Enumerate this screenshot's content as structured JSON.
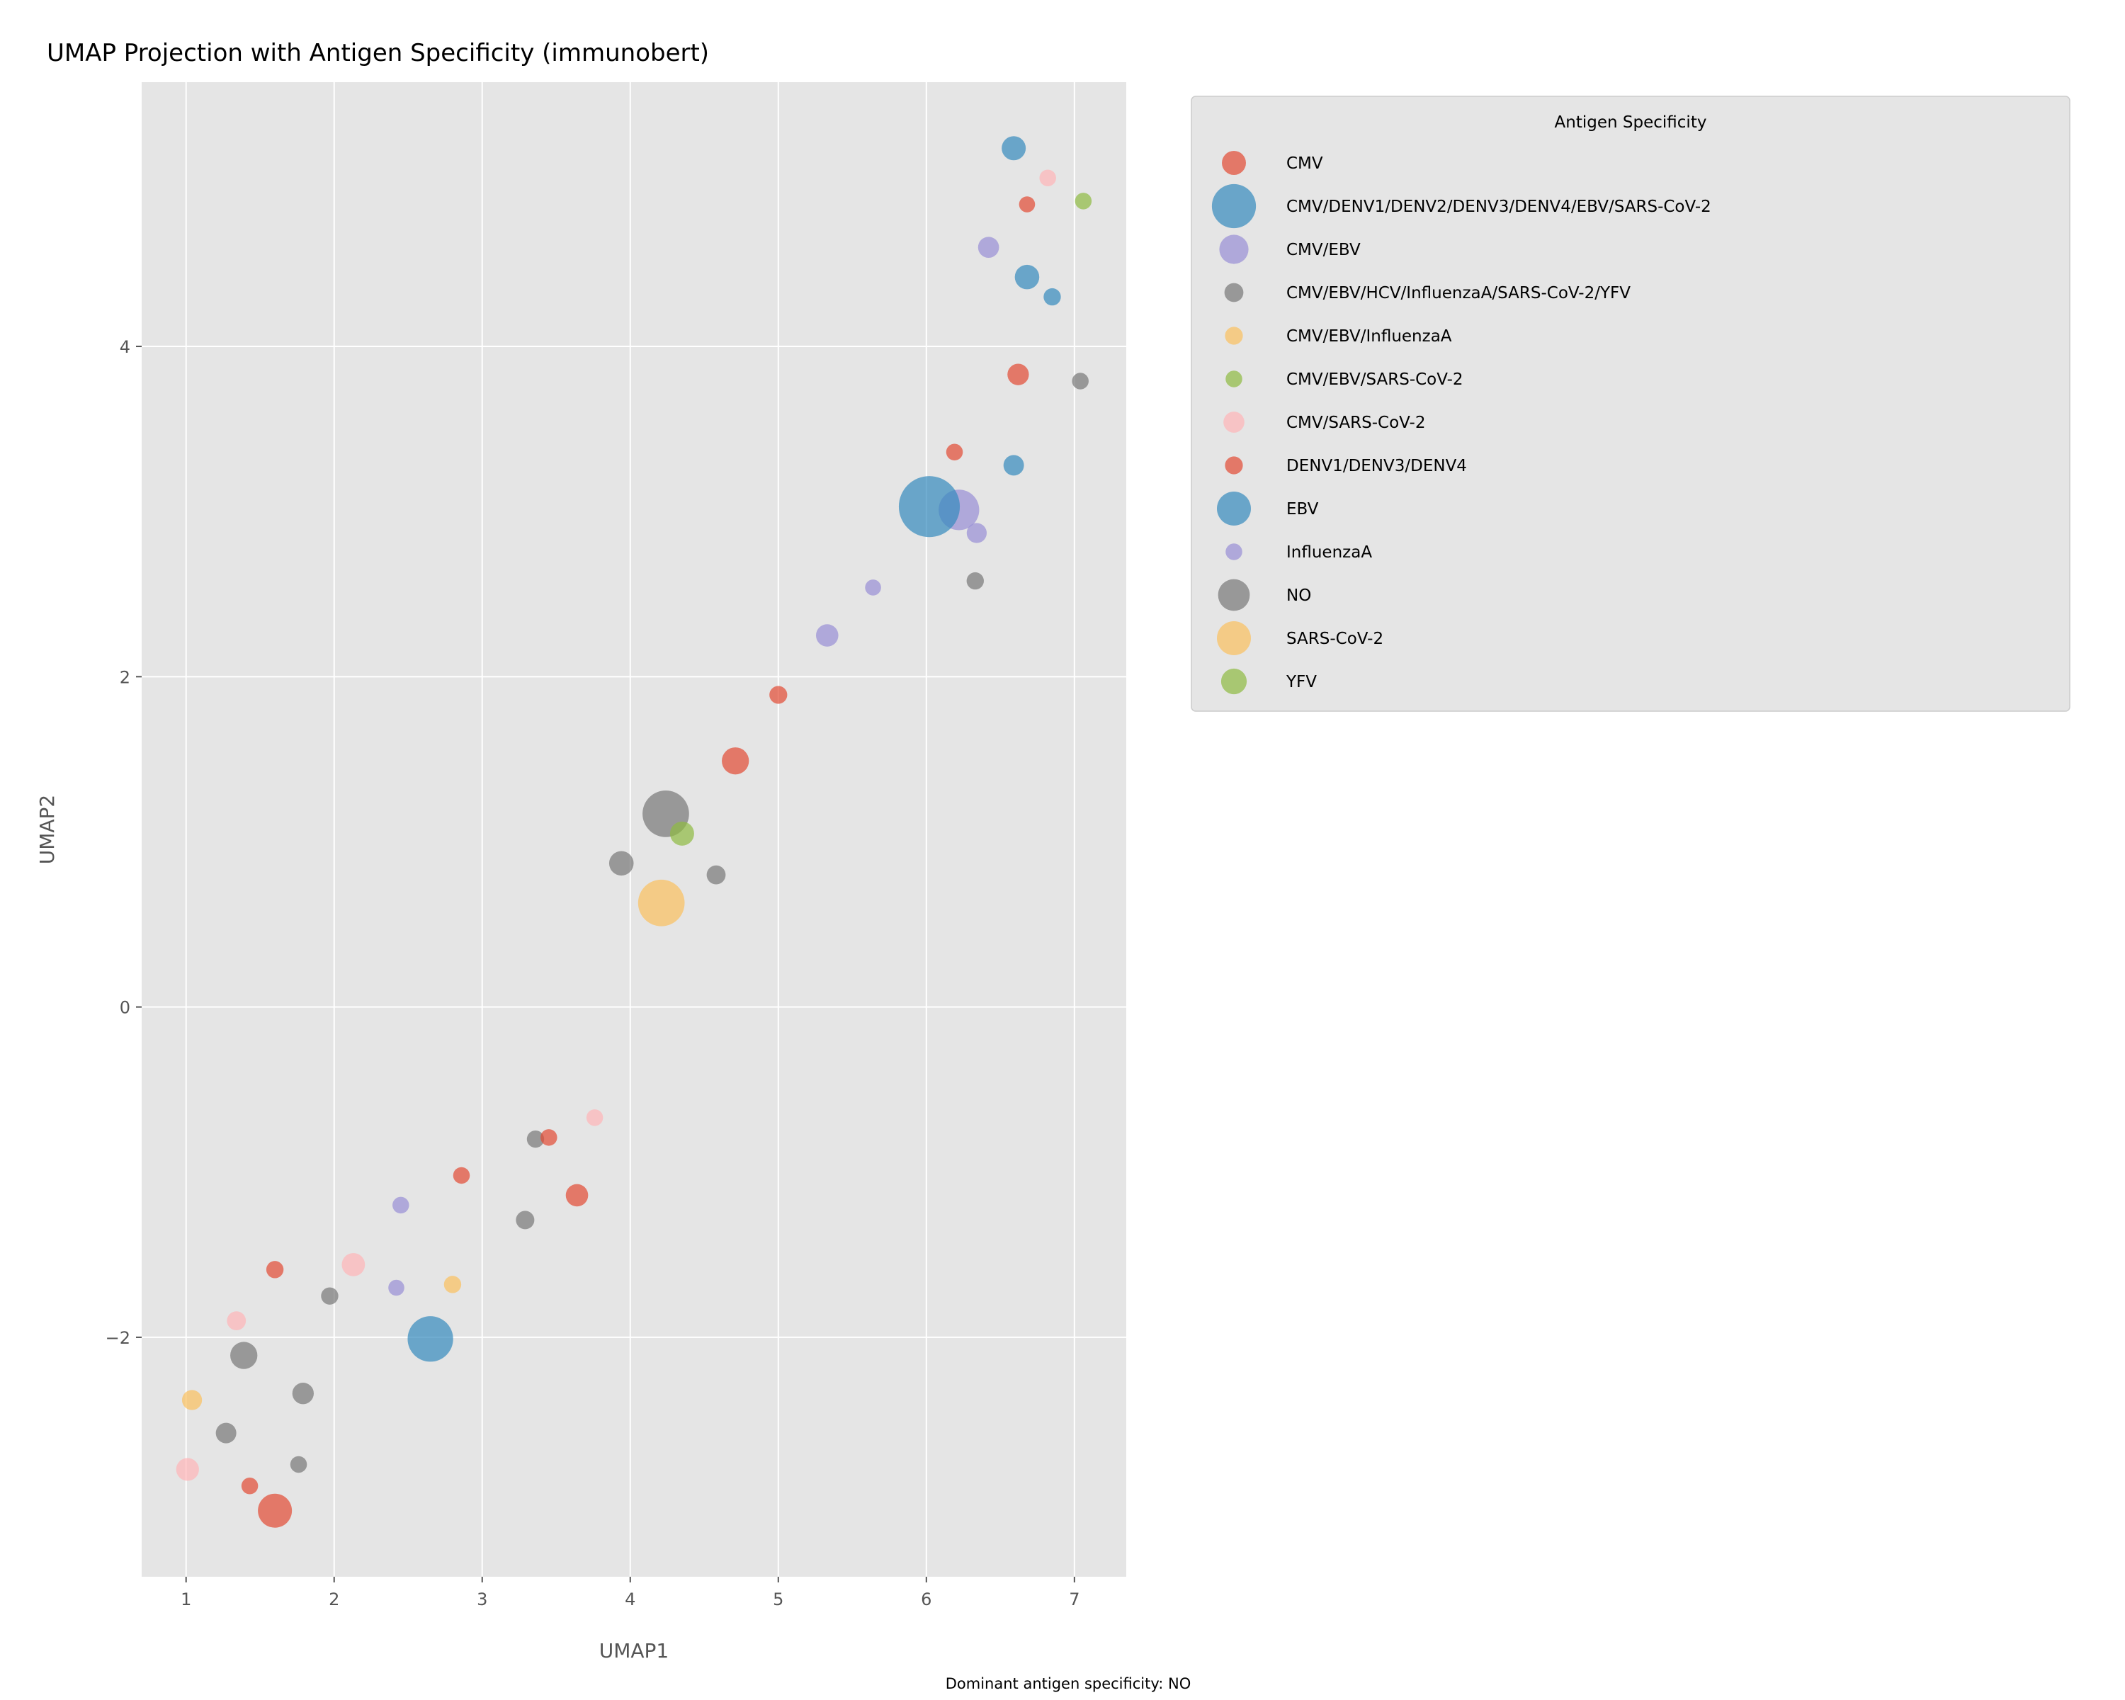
{
  "chart_data": {
    "type": "scatter",
    "title": "UMAP Projection with Antigen Specificity (immunobert)",
    "xlabel": "UMAP1",
    "ylabel": "UMAP2",
    "xlim": [
      0.7,
      7.35
    ],
    "ylim": [
      -3.45,
      5.6
    ],
    "xticks": [
      1,
      2,
      3,
      4,
      5,
      6,
      7
    ],
    "yticks": [
      -2,
      0,
      2,
      4
    ],
    "grid": true,
    "legend": {
      "title": "Antigen Specificity",
      "placement": "outside right, top"
    },
    "footnote": "Dominant antigen specificity: NO",
    "series": [
      {
        "name": "CMV",
        "color": "#E24A33",
        "legend_size": 260,
        "points": [
          {
            "x": 4.71,
            "y": 1.49,
            "size": 340
          },
          {
            "x": 6.62,
            "y": 3.83,
            "size": 200
          },
          {
            "x": 1.6,
            "y": -3.05,
            "size": 560
          },
          {
            "x": 3.64,
            "y": -1.14,
            "size": 220
          }
        ]
      },
      {
        "name": "CMV/DENV1/DENV2/DENV3/DENV4/EBV/SARS-CoV-2",
        "color": "#348ABD",
        "legend_size": 980,
        "points": []
      },
      {
        "name": "CMV/EBV",
        "color": "#988ED5",
        "legend_size": 400,
        "points": [
          {
            "x": 6.22,
            "y": 3.01,
            "size": 820
          },
          {
            "x": 5.33,
            "y": 2.25,
            "size": 220
          },
          {
            "x": 6.42,
            "y": 4.6,
            "size": 190
          },
          {
            "x": 6.34,
            "y": 2.87,
            "size": 170
          }
        ]
      },
      {
        "name": "CMV/EBV/HCV/InfluenzaA/SARS-CoV-2/YFV",
        "color": "#777777",
        "legend_size": 150,
        "points": [
          {
            "x": 6.33,
            "y": 2.58,
            "size": 120
          },
          {
            "x": 7.04,
            "y": 3.79,
            "size": 110
          },
          {
            "x": 3.36,
            "y": -0.8,
            "size": 120
          },
          {
            "x": 4.58,
            "y": 0.8,
            "size": 150
          },
          {
            "x": 3.29,
            "y": -1.29,
            "size": 140
          },
          {
            "x": 1.97,
            "y": -1.75,
            "size": 120
          },
          {
            "x": 1.76,
            "y": -2.77,
            "size": 110
          }
        ]
      },
      {
        "name": "CMV/EBV/InfluenzaA",
        "color": "#FBC15E",
        "legend_size": 130,
        "points": [
          {
            "x": 1.04,
            "y": -2.38,
            "size": 170
          },
          {
            "x": 2.8,
            "y": -1.68,
            "size": 120
          }
        ]
      },
      {
        "name": "CMV/EBV/SARS-CoV-2",
        "color": "#8EBA42",
        "legend_size": 110,
        "points": [
          {
            "x": 7.06,
            "y": 4.88,
            "size": 110
          }
        ]
      },
      {
        "name": "CMV/SARS-CoV-2",
        "color": "#FFB5B8",
        "legend_size": 190,
        "points": [
          {
            "x": 6.82,
            "y": 5.02,
            "size": 110
          },
          {
            "x": 3.76,
            "y": -0.67,
            "size": 110
          },
          {
            "x": 1.34,
            "y": -1.9,
            "size": 150
          },
          {
            "x": 1.01,
            "y": -2.8,
            "size": 230
          },
          {
            "x": 2.13,
            "y": -1.56,
            "size": 240
          }
        ]
      },
      {
        "name": "DENV1/DENV3/DENV4",
        "color": "#E24A33",
        "legend_size": 130,
        "points": [
          {
            "x": 6.68,
            "y": 4.86,
            "size": 100
          },
          {
            "x": 6.19,
            "y": 3.36,
            "size": 110
          },
          {
            "x": 5.0,
            "y": 1.89,
            "size": 130
          },
          {
            "x": 3.45,
            "y": -0.79,
            "size": 110
          },
          {
            "x": 2.86,
            "y": -1.02,
            "size": 110
          },
          {
            "x": 1.6,
            "y": -1.59,
            "size": 120
          },
          {
            "x": 1.43,
            "y": -2.9,
            "size": 110
          }
        ]
      },
      {
        "name": "EBV",
        "color": "#348ABD",
        "legend_size": 560,
        "points": [
          {
            "x": 6.59,
            "y": 5.2,
            "size": 260
          },
          {
            "x": 6.68,
            "y": 4.42,
            "size": 270
          },
          {
            "x": 6.85,
            "y": 4.3,
            "size": 120
          },
          {
            "x": 6.59,
            "y": 3.28,
            "size": 180
          },
          {
            "x": 6.02,
            "y": 3.03,
            "size": 1950
          },
          {
            "x": 2.65,
            "y": -2.01,
            "size": 1050
          }
        ]
      },
      {
        "name": "InfluenzaA",
        "color": "#988ED5",
        "legend_size": 110,
        "points": [
          {
            "x": 5.64,
            "y": 2.54,
            "size": 100
          },
          {
            "x": 2.45,
            "y": -1.2,
            "size": 110
          },
          {
            "x": 2.42,
            "y": -1.7,
            "size": 100
          }
        ]
      },
      {
        "name": "NO",
        "color": "#777777",
        "legend_size": 480,
        "points": [
          {
            "x": 4.24,
            "y": 1.17,
            "size": 1100
          },
          {
            "x": 3.94,
            "y": 0.87,
            "size": 270
          },
          {
            "x": 1.39,
            "y": -2.11,
            "size": 340
          },
          {
            "x": 1.79,
            "y": -2.34,
            "size": 200
          },
          {
            "x": 1.27,
            "y": -2.58,
            "size": 180
          }
        ]
      },
      {
        "name": "SARS-CoV-2",
        "color": "#FBC15E",
        "legend_size": 560,
        "points": [
          {
            "x": 4.21,
            "y": 0.63,
            "size": 1100
          }
        ]
      },
      {
        "name": "YFV",
        "color": "#8EBA42",
        "legend_size": 300,
        "points": [
          {
            "x": 4.35,
            "y": 1.05,
            "size": 260
          }
        ]
      }
    ]
  }
}
